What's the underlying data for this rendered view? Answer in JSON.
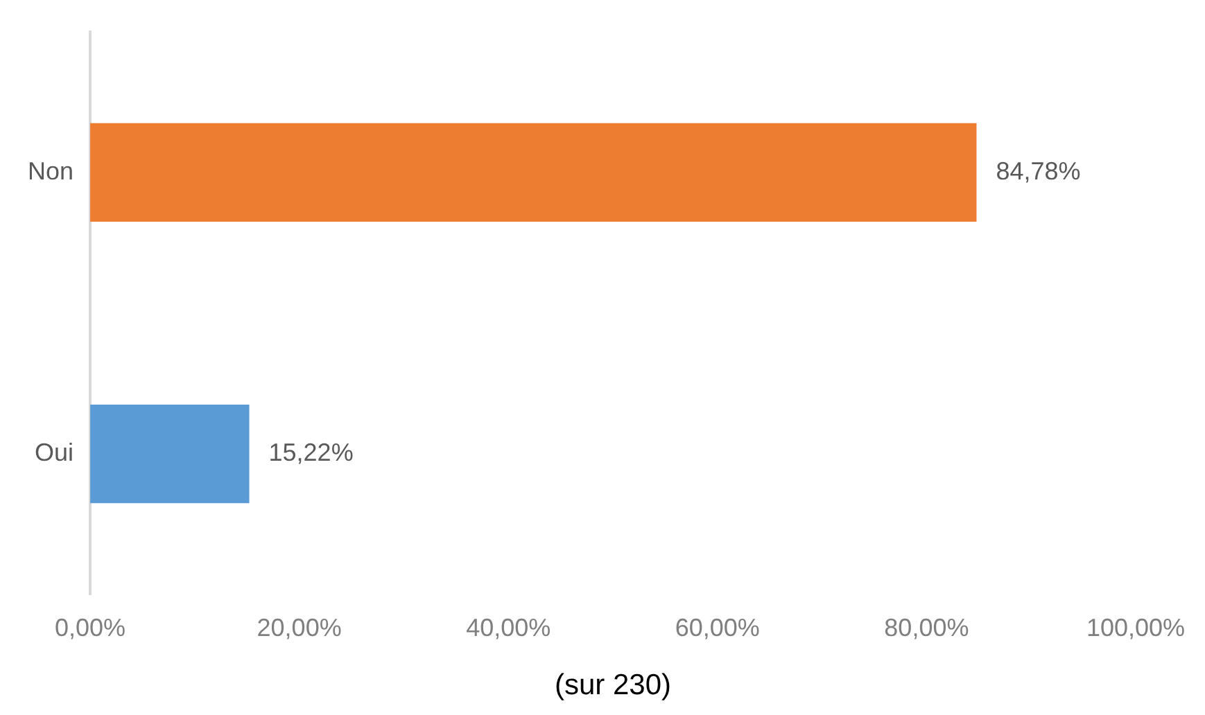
{
  "chart_data": {
    "type": "bar",
    "orientation": "horizontal",
    "xlabel": "(sur 230)",
    "categories": [
      "Non",
      "Oui"
    ],
    "values": [
      84.78,
      15.22
    ],
    "colors": [
      "#ed7d31",
      "#5b9bd5"
    ],
    "value_labels": [
      "84,78%",
      "15,22%"
    ],
    "xlim": [
      0,
      100
    ],
    "xticks": [
      {
        "value": 0,
        "label": "0,00%"
      },
      {
        "value": 20,
        "label": "20,00%"
      },
      {
        "value": 40,
        "label": "40,00%"
      },
      {
        "value": 60,
        "label": "60,00%"
      },
      {
        "value": 80,
        "label": "80,00%"
      },
      {
        "value": 100,
        "label": "100,00%"
      }
    ],
    "grid": false,
    "legend": false
  }
}
